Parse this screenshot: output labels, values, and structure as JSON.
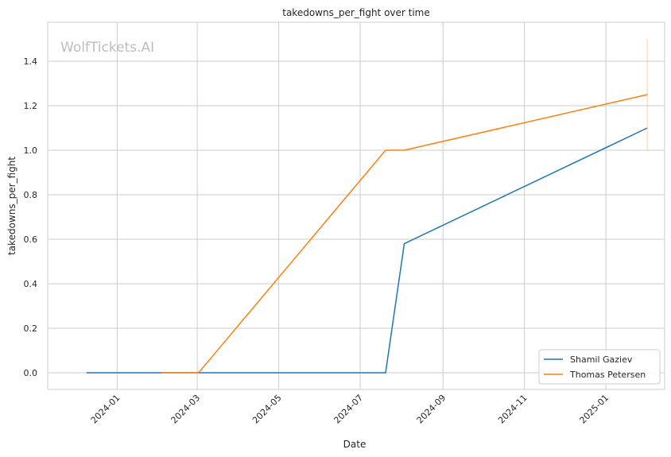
{
  "chart_data": {
    "type": "line",
    "title": "takedowns_per_fight over time",
    "xlabel": "Date",
    "ylabel": "takedowns_per_fight",
    "watermark": "WolfTickets.AI",
    "xlim": [
      "2023-11-10",
      "2025-02-14"
    ],
    "ylim": [
      -0.075,
      1.575
    ],
    "grid": true,
    "legend_position": "lower-right",
    "x_ticks": [
      {
        "date": "2024-01-01",
        "label": "2024-01"
      },
      {
        "date": "2024-03-01",
        "label": "2024-03"
      },
      {
        "date": "2024-05-01",
        "label": "2024-05"
      },
      {
        "date": "2024-07-01",
        "label": "2024-07"
      },
      {
        "date": "2024-09-01",
        "label": "2024-09"
      },
      {
        "date": "2024-11-01",
        "label": "2024-11"
      },
      {
        "date": "2025-01-01",
        "label": "2025-01"
      }
    ],
    "y_ticks": [
      {
        "value": 0.0,
        "label": "0.0"
      },
      {
        "value": 0.2,
        "label": "0.2"
      },
      {
        "value": 0.4,
        "label": "0.4"
      },
      {
        "value": 0.6,
        "label": "0.6"
      },
      {
        "value": 0.8,
        "label": "0.8"
      },
      {
        "value": 1.0,
        "label": "1.0"
      },
      {
        "value": 1.2,
        "label": "1.2"
      },
      {
        "value": 1.4,
        "label": "1.4"
      }
    ],
    "series": [
      {
        "name": "Shamil Gaziev",
        "color": "#1f77b4",
        "x": [
          "2023-12-09",
          "2024-03-01",
          "2024-07-20",
          "2024-08-03",
          "2025-02-01"
        ],
        "y": [
          0.0,
          0.0,
          0.0,
          0.58,
          1.1
        ]
      },
      {
        "name": "Thomas Petersen",
        "color": "#ff7f0e",
        "x": [
          "2024-02-03",
          "2024-03-02",
          "2024-07-20",
          "2024-08-03",
          "2025-02-01"
        ],
        "y": [
          0.0,
          0.0,
          1.0,
          1.0,
          1.25
        ],
        "error_bar": {
          "x": "2025-02-01",
          "low": 1.0,
          "high": 1.5
        }
      }
    ]
  }
}
